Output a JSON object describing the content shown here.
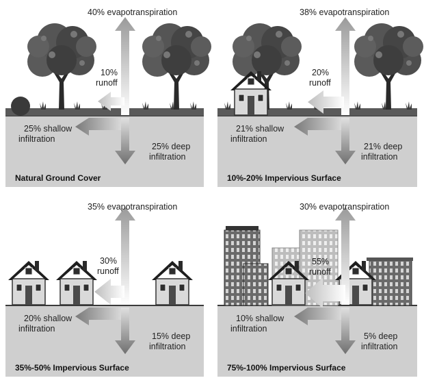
{
  "panels": [
    {
      "evapotranspiration": "40% evapotranspiration",
      "runoff_pct": "10%",
      "runoff_word": "runoff",
      "shallow_pct": "25% shallow",
      "shallow_word": "infiltration",
      "deep_pct": "25% deep",
      "deep_word": "infiltration",
      "caption": "Natural Ground Cover"
    },
    {
      "evapotranspiration": "38% evapotranspiration",
      "runoff_pct": "20%",
      "runoff_word": "runoff",
      "shallow_pct": "21% shallow",
      "shallow_word": "infiltration",
      "deep_pct": "21% deep",
      "deep_word": "infiltration",
      "caption": "10%-20% Impervious Surface"
    },
    {
      "evapotranspiration": "35% evapotranspiration",
      "runoff_pct": "30%",
      "runoff_word": "runoff",
      "shallow_pct": "20% shallow",
      "shallow_word": "infiltration",
      "deep_pct": "15% deep",
      "deep_word": "infiltration",
      "caption": "35%-50% Impervious Surface"
    },
    {
      "evapotranspiration": "30% evapotranspiration",
      "runoff_pct": "55%",
      "runoff_word": "runoff",
      "shallow_pct": "10% shallow",
      "shallow_word": "infiltration",
      "deep_pct": "5% deep",
      "deep_word": "infiltration",
      "caption": "75%-100% Impervious Surface"
    }
  ],
  "colors": {
    "ground": "#cfcfcf",
    "ground_line": "#3a3a3a",
    "arrow": "#8a8a8a",
    "foliage": "#4a4a4a",
    "house_wall": "#d6d6d6",
    "roof": "#222222",
    "building": "#6e6e6e"
  }
}
